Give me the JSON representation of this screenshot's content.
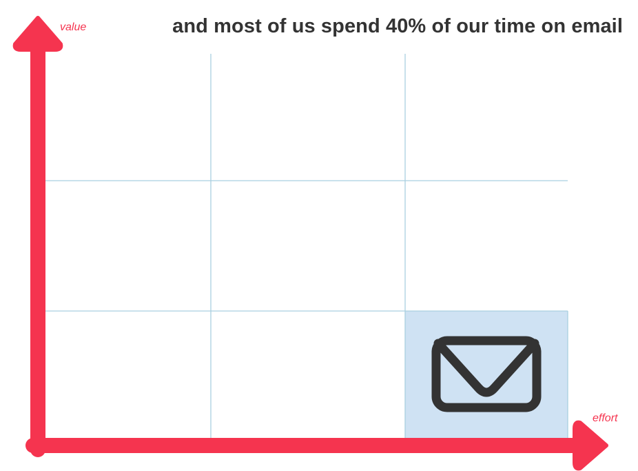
{
  "headline": "and most of us spend 40% of our time on email",
  "axes": {
    "y_label": "value",
    "x_label": "effort"
  },
  "grid": {
    "rows": 3,
    "columns": 3,
    "highlighted_cell": {
      "row": 3,
      "column": 3,
      "icon": "envelope-icon"
    }
  },
  "colors": {
    "axis": "#f5344f",
    "grid_line": "#a9cfe0",
    "highlight_fill": "#cfe2f3",
    "icon": "#333333",
    "headline": "#333333"
  }
}
